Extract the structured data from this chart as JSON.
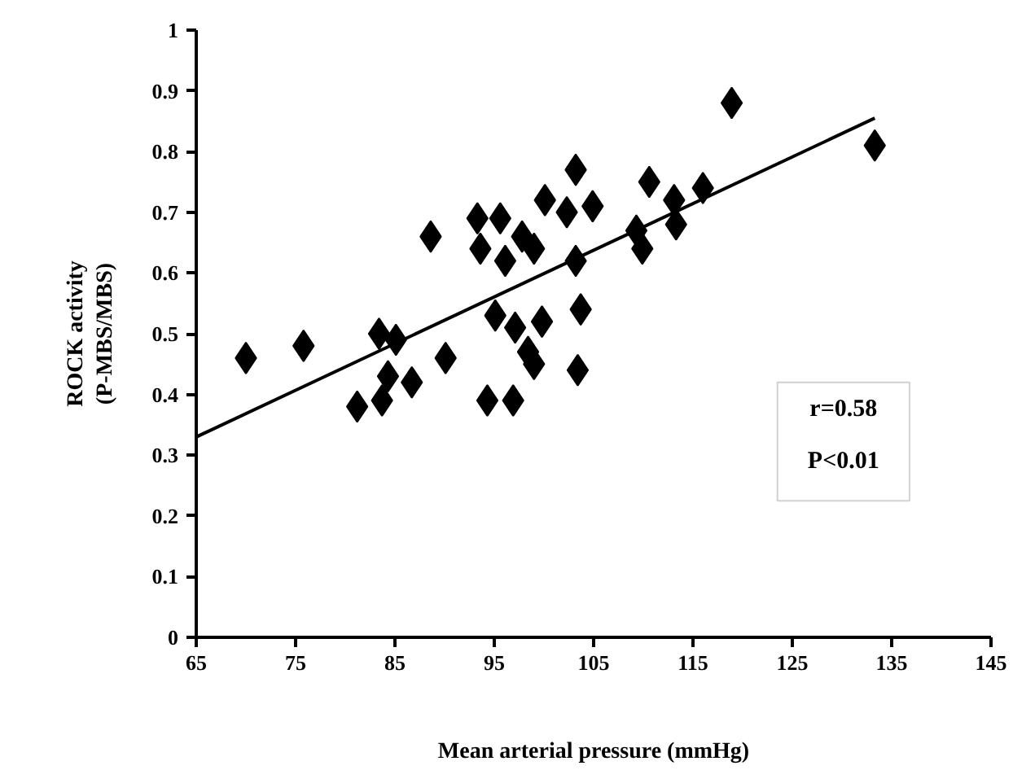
{
  "chart_data": {
    "type": "scatter",
    "xlabel": "Mean arterial pressure (mmHg)",
    "ylabel": "ROCK activity\n(P-MBS/MBS)",
    "xlim": [
      65,
      145
    ],
    "ylim": [
      0,
      1
    ],
    "xticks": [
      65,
      75,
      85,
      95,
      105,
      115,
      125,
      135,
      145
    ],
    "yticks": [
      0,
      0.1,
      0.2,
      0.3,
      0.4,
      0.5,
      0.6,
      0.7,
      0.8,
      0.9,
      1
    ],
    "marker": "diamond",
    "grid": false,
    "series": [
      {
        "color": "#000000",
        "x": [
          70,
          75.8,
          81.2,
          83.4,
          84.6,
          85.1,
          84.3,
          83.7,
          86.7,
          90.1,
          88.6,
          93.3,
          95.6,
          93.6,
          96.1,
          97.8,
          99,
          100.1,
          102.3,
          103.2,
          103.2,
          95.1,
          97.1,
          99.8,
          98.4,
          99,
          94.3,
          96.9,
          103.4,
          103.7,
          104.9,
          110.6,
          113.1,
          109.3,
          109.9,
          113.3,
          116,
          118.9,
          133.3
        ],
        "values": [
          0.46,
          0.48,
          0.38,
          0.5,
          null,
          0.49,
          0.43,
          0.39,
          0.42,
          0.46,
          0.66,
          0.69,
          0.69,
          0.64,
          0.62,
          0.66,
          0.64,
          0.72,
          0.7,
          0.77,
          0.62,
          0.53,
          0.51,
          0.52,
          0.47,
          0.45,
          0.39,
          0.39,
          0.44,
          0.54,
          0.71,
          0.75,
          0.72,
          0.67,
          0.64,
          0.68,
          0.74,
          0.88,
          0.81
        ]
      },
      {
        "type": "line",
        "marker": "none",
        "color": "#000000",
        "x": [
          65,
          133.3
        ],
        "values": [
          0.33,
          0.855
        ]
      }
    ],
    "annotations": [
      "r=0.58",
      "P<0.01"
    ]
  }
}
